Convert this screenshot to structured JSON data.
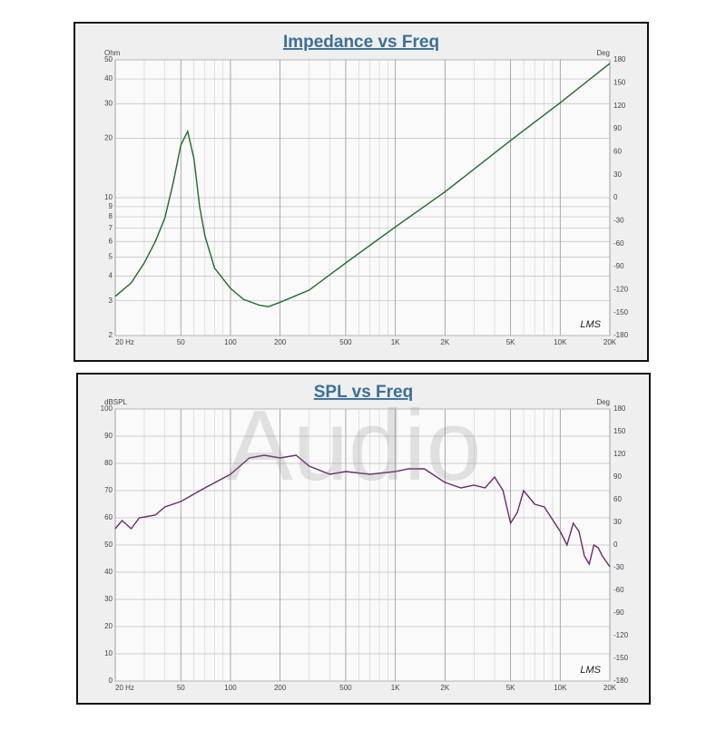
{
  "chart_data": [
    {
      "type": "line",
      "title": "Impedance vs Freq",
      "ylabel": "Ohm",
      "y2label": "Deg",
      "annotation": "LMS",
      "xscale": "log",
      "yscale": "log",
      "grid": true,
      "color": "#1f6b2a",
      "xlim": [
        20,
        20000
      ],
      "xticks": [
        {
          "value": 20,
          "label": "20 Hz"
        },
        50,
        100,
        200,
        500,
        {
          "value": 1000,
          "label": "1K"
        },
        {
          "value": 2000,
          "label": "2K"
        },
        {
          "value": 5000,
          "label": "5K"
        },
        {
          "value": 10000,
          "label": "10K"
        },
        {
          "value": 20000,
          "label": "20K"
        }
      ],
      "ylim": [
        2,
        50
      ],
      "yticks": [
        2,
        3,
        4,
        5,
        6,
        7,
        8,
        9,
        10,
        20,
        30,
        40,
        50
      ],
      "y2lim": [
        -180,
        180
      ],
      "y2ticks": [
        -180,
        -150,
        -120,
        -90,
        -60,
        -30,
        0,
        30,
        60,
        90,
        120,
        150,
        180
      ],
      "x": [
        20,
        25,
        30,
        35,
        40,
        45,
        50,
        55,
        60,
        65,
        70,
        80,
        100,
        120,
        150,
        170,
        200,
        300,
        500,
        1000,
        2000,
        5000,
        10000,
        20000
      ],
      "values": [
        3.16,
        3.7,
        4.67,
        6.0,
        7.9,
        12,
        18.5,
        21.7,
        15.8,
        9.0,
        6.4,
        4.4,
        3.47,
        3.05,
        2.85,
        2.8,
        2.95,
        3.4,
        4.67,
        7.1,
        10.7,
        19.5,
        30.3,
        48
      ]
    },
    {
      "type": "line",
      "title": "SPL vs Freq",
      "ylabel": "dBSPL",
      "y2label": "Deg",
      "annotation": "LMS",
      "xscale": "log",
      "yscale": "linear",
      "grid": true,
      "color": "#6a2a6e",
      "xlim": [
        20,
        20000
      ],
      "xticks": [
        {
          "value": 20,
          "label": "20 Hz"
        },
        50,
        100,
        200,
        500,
        {
          "value": 1000,
          "label": "1K"
        },
        {
          "value": 2000,
          "label": "2K"
        },
        {
          "value": 5000,
          "label": "5K"
        },
        {
          "value": 10000,
          "label": "10K"
        },
        {
          "value": 20000,
          "label": "20K"
        }
      ],
      "ylim": [
        0,
        100
      ],
      "yticks": [
        0,
        10,
        20,
        30,
        40,
        50,
        60,
        70,
        80,
        90,
        100
      ],
      "y2lim": [
        -180,
        180
      ],
      "y2ticks": [
        -180,
        -150,
        -120,
        -90,
        -60,
        -30,
        0,
        30,
        60,
        90,
        120,
        150,
        180
      ],
      "x": [
        20,
        22,
        25,
        28,
        35,
        40,
        50,
        70,
        100,
        130,
        160,
        200,
        250,
        300,
        400,
        500,
        700,
        1000,
        1200,
        1500,
        2000,
        2500,
        3000,
        3500,
        4000,
        4500,
        5000,
        5500,
        6000,
        7000,
        8000,
        10000,
        11000,
        12000,
        13000,
        14000,
        15000,
        16000,
        17000,
        18000,
        20000
      ],
      "values": [
        56,
        59,
        56,
        60,
        61,
        64,
        66,
        71,
        76,
        82,
        83,
        82,
        83,
        79,
        76,
        77,
        76,
        77,
        78,
        78,
        73,
        71,
        72,
        71,
        75,
        70,
        58,
        62,
        70,
        65,
        64,
        55,
        50,
        58,
        55,
        46,
        43,
        50,
        49,
        46,
        42
      ]
    }
  ],
  "watermark": "Audio"
}
